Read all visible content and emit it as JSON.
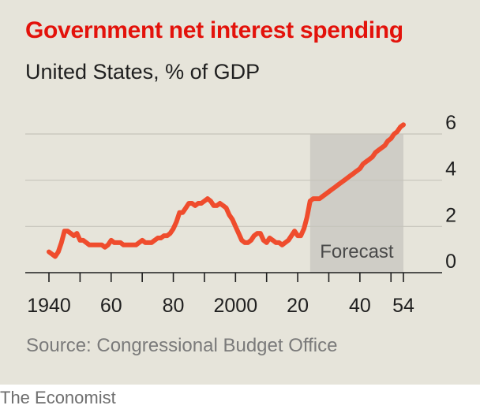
{
  "header": {
    "title": "Government net interest spending",
    "subtitle": "United States, % of GDP"
  },
  "footer": {
    "source": "Source: Congressional Budget Office",
    "brand": "The Economist"
  },
  "colors": {
    "line": "#ef4c2d",
    "title": "#e3120b",
    "panel_bg": "#e6e4da",
    "forecast_band": "#cfcdc6"
  },
  "chart_data": {
    "type": "line",
    "title": "Government net interest spending",
    "subtitle": "United States, % of GDP",
    "xlabel": "",
    "ylabel": "",
    "xlim": [
      1940,
      2054
    ],
    "ylim": [
      0,
      6
    ],
    "y_ticks": [
      0,
      2,
      4,
      6
    ],
    "y_tick_labels": [
      "0",
      "2",
      "4",
      "6"
    ],
    "x_tick_positions": [
      1940,
      1960,
      1980,
      2000,
      2020,
      2040,
      2054
    ],
    "x_tick_labels": [
      "1940",
      "60",
      "80",
      "2000",
      "20",
      "40",
      "54"
    ],
    "grid": true,
    "y_axis_side": "right",
    "forecast": {
      "label": "Forecast",
      "start": 2024,
      "end": 2054
    },
    "series": [
      {
        "x": [
          1940,
          1941,
          1942,
          1943,
          1944,
          1945,
          1946,
          1947,
          1948,
          1949,
          1950,
          1951,
          1952,
          1953,
          1954,
          1955,
          1956,
          1957,
          1958,
          1959,
          1960,
          1961,
          1962,
          1963,
          1964,
          1965,
          1966,
          1967,
          1968,
          1969,
          1970,
          1971,
          1972,
          1973,
          1974,
          1975,
          1976,
          1977,
          1978,
          1979,
          1980,
          1981,
          1982,
          1983,
          1984,
          1985,
          1986,
          1987,
          1988,
          1989,
          1990,
          1991,
          1992,
          1993,
          1994,
          1995,
          1996,
          1997,
          1998,
          1999,
          2000,
          2001,
          2002,
          2003,
          2004,
          2005,
          2006,
          2007,
          2008,
          2009,
          2010,
          2011,
          2012,
          2013,
          2014,
          2015,
          2016,
          2017,
          2018,
          2019,
          2020,
          2021,
          2022,
          2023,
          2024,
          2025,
          2026,
          2027,
          2028,
          2029,
          2030,
          2031,
          2032,
          2033,
          2034,
          2035,
          2036,
          2037,
          2038,
          2039,
          2040,
          2041,
          2042,
          2043,
          2044,
          2045,
          2046,
          2047,
          2048,
          2049,
          2050,
          2051,
          2052,
          2053,
          2054
        ],
        "values": [
          0.9,
          0.8,
          0.7,
          0.9,
          1.3,
          1.8,
          1.8,
          1.7,
          1.6,
          1.7,
          1.4,
          1.4,
          1.3,
          1.2,
          1.2,
          1.2,
          1.2,
          1.2,
          1.1,
          1.2,
          1.4,
          1.3,
          1.3,
          1.3,
          1.2,
          1.2,
          1.2,
          1.2,
          1.2,
          1.3,
          1.4,
          1.3,
          1.3,
          1.3,
          1.4,
          1.5,
          1.5,
          1.6,
          1.6,
          1.7,
          1.9,
          2.2,
          2.6,
          2.6,
          2.8,
          3.0,
          3.0,
          2.9,
          3.0,
          3.0,
          3.1,
          3.2,
          3.1,
          2.9,
          2.9,
          3.0,
          2.9,
          2.8,
          2.5,
          2.3,
          2.0,
          1.7,
          1.4,
          1.3,
          1.3,
          1.4,
          1.6,
          1.7,
          1.7,
          1.4,
          1.3,
          1.5,
          1.4,
          1.3,
          1.3,
          1.2,
          1.3,
          1.4,
          1.6,
          1.8,
          1.6,
          1.6,
          1.9,
          2.4,
          3.1,
          3.2,
          3.2,
          3.2,
          3.3,
          3.4,
          3.5,
          3.6,
          3.7,
          3.8,
          3.9,
          4.0,
          4.1,
          4.2,
          4.3,
          4.4,
          4.5,
          4.7,
          4.8,
          4.9,
          5.0,
          5.2,
          5.3,
          5.4,
          5.5,
          5.7,
          5.8,
          6.0,
          6.1,
          6.3,
          6.4
        ]
      }
    ]
  }
}
